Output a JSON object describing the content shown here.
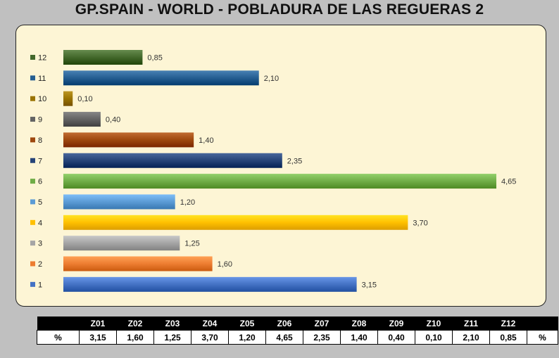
{
  "title": "GP.SPAIN - WORLD  - POBLADURA DE LAS REGUERAS 2",
  "chart_data": {
    "type": "bar",
    "orientation": "horizontal",
    "categories": [
      "1",
      "2",
      "3",
      "4",
      "5",
      "6",
      "7",
      "8",
      "9",
      "10",
      "11",
      "12"
    ],
    "values": [
      3.15,
      1.6,
      1.25,
      3.7,
      1.2,
      4.65,
      2.35,
      1.4,
      0.4,
      0.1,
      2.1,
      0.85
    ],
    "value_labels": [
      "3,15",
      "1,60",
      "1,25",
      "3,70",
      "1,20",
      "4,65",
      "2,35",
      "1,40",
      "0,40",
      "0,10",
      "2,10",
      "0,85"
    ],
    "colors": [
      "#4472c4",
      "#ed7d31",
      "#a5a5a5",
      "#ffc000",
      "#5b9bd5",
      "#70ad47",
      "#264478",
      "#9e480e",
      "#636363",
      "#997300",
      "#255e91",
      "#43682b"
    ],
    "legend_position": "left",
    "grid": false,
    "xlim": [
      0,
      4.65
    ]
  },
  "table": {
    "headers": [
      "",
      "Z01",
      "Z02",
      "Z03",
      "Z04",
      "Z05",
      "Z06",
      "Z07",
      "Z08",
      "Z09",
      "Z10",
      "Z11",
      "Z12",
      ""
    ],
    "row": [
      "%",
      "3,15",
      "1,60",
      "1,25",
      "3,70",
      "1,20",
      "4,65",
      "2,35",
      "1,40",
      "0,40",
      "0,10",
      "2,10",
      "0,85",
      "%"
    ]
  }
}
